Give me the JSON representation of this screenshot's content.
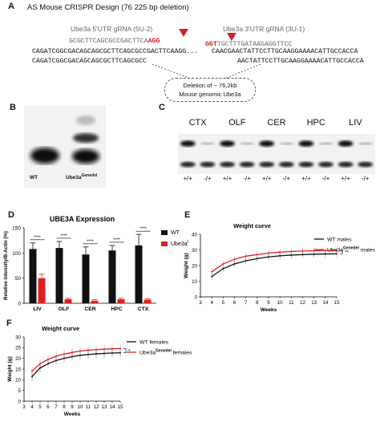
{
  "panelA": {
    "label": "A",
    "title": "AS Mouse CRISPR Design (76 225 bp deletion)",
    "grna5_label": "Ube3a 5'UTR gRNA (5U-2)",
    "grna3_label": "Ube3a 3'UTR gRNA (3U-1)",
    "grna5_seq": "GCGCTTCAGCGCCGACTTCA",
    "grna5_pam": "AGG",
    "grna3_pam": "GGT",
    "grna3_seq": "TGCTTTGATAAGAGGTTCC",
    "top_left": "CAGATCGGCGACAGCAGCGCTTCAGCGCCGACTTCAAGG...",
    "top_right": "CAACGAACTATTCCTTGCAAGGAAAACATTGCCACCA",
    "bot_left": "CAGATCGGCGACAGCAGCGCTTCAGCGCC",
    "bot_right": "AACTATTCCTTGCAAGGAAAACATTGCCACCA",
    "deletion_line1": "Deletion of ~ 76,2kb",
    "deletion_line2": "Mouse genomic Ube3a"
  },
  "panelB": {
    "label": "B",
    "lane1": "WT",
    "lane2_main": "Ube3a",
    "lane2_sup": "Genedel"
  },
  "panelC": {
    "label": "C",
    "tissues": [
      "CTX",
      "OLF",
      "CER",
      "HPC",
      "LIV"
    ],
    "genotypes": [
      "+/+",
      "-/+",
      "+/+",
      "-/+",
      "+/+",
      "-/+",
      "+/+",
      "-/+",
      "+/+",
      "-/+"
    ]
  },
  "panelD": {
    "label": "D",
    "chart_data": {
      "type": "bar",
      "title": "UBE3A Expression",
      "ylabel": "Relative intensity/B-Actin (%)",
      "ylim": [
        0,
        150
      ],
      "yticks": [
        0,
        50,
        100,
        150
      ],
      "categories": [
        "LIV",
        "OLF",
        "CER",
        "HPC",
        "CTX"
      ],
      "series": [
        {
          "name": "WT",
          "color": "#111111",
          "values": [
            108,
            110,
            97,
            105,
            115
          ],
          "errors": [
            12,
            13,
            15,
            10,
            22
          ]
        },
        {
          "name": "Ube3a^Genedel",
          "color": "#e02020",
          "values": [
            50,
            8,
            5,
            8,
            7
          ],
          "errors": [
            8,
            2,
            2,
            2,
            2
          ]
        }
      ],
      "significance": [
        "****",
        "****",
        "****",
        "****",
        "****"
      ]
    }
  },
  "panelE": {
    "label": "E",
    "chart_data": {
      "type": "line",
      "title": "Weight curve",
      "xlabel": "Weeks",
      "ylabel": "Weight (g)",
      "xlim": [
        3,
        15
      ],
      "ylim": [
        0,
        40
      ],
      "xticks": [
        3,
        4,
        5,
        6,
        7,
        8,
        9,
        10,
        11,
        12,
        13,
        14,
        15
      ],
      "yticks": [
        0,
        10,
        20,
        30,
        40
      ],
      "x": [
        4,
        5,
        6,
        7,
        8,
        9,
        10,
        11,
        12,
        13,
        14,
        15
      ],
      "series": [
        {
          "name": "WT males",
          "color": "#111111",
          "values": [
            13,
            18,
            21,
            23,
            24.5,
            25.5,
            26.2,
            26.7,
            27,
            27.2,
            27.4,
            27.5
          ]
        },
        {
          "name": "Ube3a^Genedel males",
          "color": "#e02020",
          "values": [
            16,
            21,
            24,
            26,
            27,
            28,
            28.6,
            29,
            29.3,
            29.5,
            29.6,
            29.7
          ]
        }
      ],
      "significance": "**"
    }
  },
  "panelF": {
    "label": "F",
    "chart_data": {
      "type": "line",
      "title": "Weight curve",
      "xlabel": "Weeks",
      "ylabel": "Weight (g)",
      "xlim": [
        3,
        15
      ],
      "ylim": [
        0,
        30
      ],
      "xticks": [
        3,
        4,
        5,
        6,
        7,
        8,
        9,
        10,
        11,
        12,
        13,
        14,
        15
      ],
      "yticks": [
        0,
        5,
        10,
        15,
        20,
        25,
        30
      ],
      "x": [
        4,
        5,
        6,
        7,
        8,
        9,
        10,
        11,
        12,
        13,
        14,
        15
      ],
      "series": [
        {
          "name": "WT females",
          "color": "#111111",
          "values": [
            11.5,
            15.5,
            17.5,
            19,
            20,
            20.8,
            21.4,
            21.8,
            22.1,
            22.3,
            22.5,
            22.6
          ]
        },
        {
          "name": "Ube3a^Genedel females",
          "color": "#e02020",
          "values": [
            14,
            17.5,
            19.5,
            21,
            22,
            22.8,
            23.4,
            23.8,
            24.1,
            24.3,
            24.5,
            24.6
          ]
        }
      ],
      "significance": "*"
    }
  }
}
